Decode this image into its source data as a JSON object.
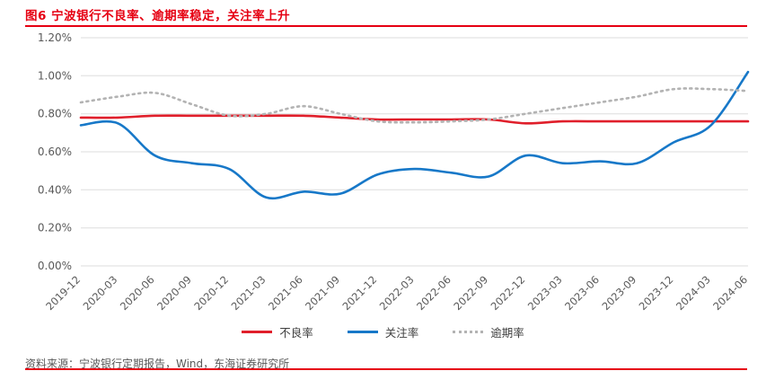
{
  "header": {
    "title": "图6  宁波银行不良率、逾期率稳定，关注率上升"
  },
  "footer": {
    "source": "资料来源：宁波银行定期报告，Wind，东海证券研究所"
  },
  "colors": {
    "accent_red": "#e60012",
    "line_red": "#e01f2b",
    "line_blue": "#1778c8",
    "line_gray": "#b3b3b3",
    "axis_text": "#595959",
    "gridline": "#dedede"
  },
  "chart_data": {
    "type": "line",
    "title": "宁波银行不良率、逾期率稳定，关注率上升",
    "xlabel": "",
    "ylabel": "",
    "ylim": [
      0,
      1.2
    ],
    "ytick_step": 0.2,
    "ytick_labels": [
      "0.00%",
      "0.20%",
      "0.40%",
      "0.60%",
      "0.80%",
      "1.00%",
      "1.20%"
    ],
    "grid": true,
    "legend_position": "bottom",
    "categories": [
      "2019-12",
      "2020-03",
      "2020-06",
      "2020-09",
      "2020-12",
      "2021-03",
      "2021-06",
      "2021-09",
      "2021-12",
      "2022-03",
      "2022-06",
      "2022-09",
      "2022-12",
      "2023-03",
      "2023-06",
      "2023-09",
      "2023-12",
      "2024-03",
      "2024-06"
    ],
    "series": [
      {
        "name": "不良率",
        "color": "#e01f2b",
        "style": "solid",
        "values": [
          0.78,
          0.78,
          0.79,
          0.79,
          0.79,
          0.79,
          0.79,
          0.78,
          0.77,
          0.77,
          0.77,
          0.77,
          0.75,
          0.76,
          0.76,
          0.76,
          0.76,
          0.76,
          0.76
        ]
      },
      {
        "name": "关注率",
        "color": "#1778c8",
        "style": "solid",
        "values": [
          0.74,
          0.75,
          0.58,
          0.54,
          0.51,
          0.36,
          0.39,
          0.38,
          0.48,
          0.51,
          0.49,
          0.47,
          0.58,
          0.54,
          0.55,
          0.54,
          0.65,
          0.74,
          1.02
        ]
      },
      {
        "name": "逾期率",
        "color": "#b3b3b3",
        "style": "dotted",
        "values": [
          0.86,
          0.89,
          0.91,
          0.85,
          0.79,
          0.8,
          0.84,
          0.8,
          0.76,
          0.755,
          0.76,
          0.77,
          0.8,
          0.83,
          0.86,
          0.89,
          0.93,
          0.93,
          0.92
        ]
      }
    ]
  }
}
